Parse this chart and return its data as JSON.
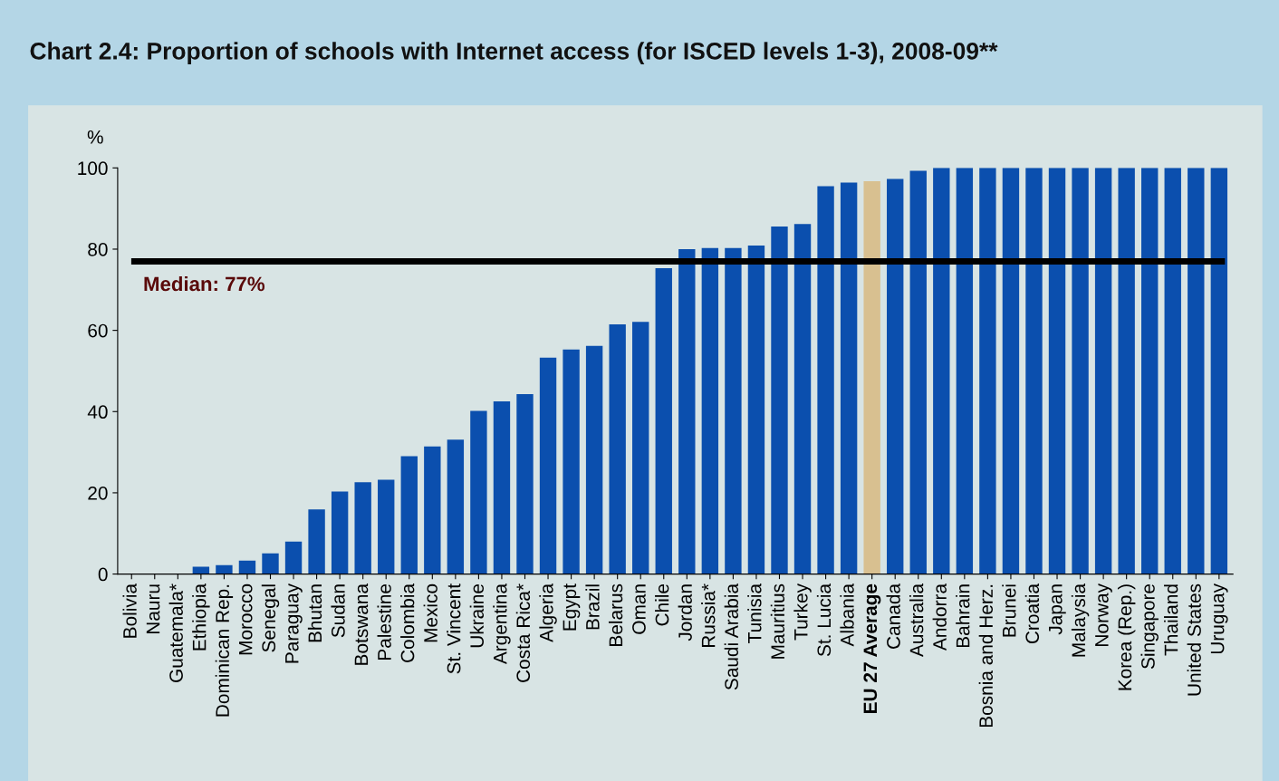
{
  "chart_data": {
    "type": "bar",
    "title": "Chart 2.4: Proportion of schools with Internet access (for ISCED levels 1-3), 2008-09**",
    "ylabel": "%",
    "categories": [
      "Bolivia",
      "Nauru",
      "Guatemala*",
      "Ethiopia",
      "Dominican Rep.",
      "Morocco",
      "Senegal",
      "Paraguay",
      "Bhutan",
      "Sudan",
      "Botswana",
      "Palestine",
      "Colombia",
      "Mexico",
      "St. Vincent",
      "Ukraine",
      "Argentina",
      "Costa Rica*",
      "Algeria",
      "Egypt",
      "Brazil",
      "Belarus",
      "Oman",
      "Chile",
      "Jordan",
      "Russia*",
      "Saudi Arabia",
      "Tunisia",
      "Mauritius",
      "Turkey",
      "St. Lucia",
      "Albania",
      "EU 27 Average",
      "Canada",
      "Australia",
      "Andorra",
      "Bahrain",
      "Bosnia and Herz.",
      "Brunei",
      "Croatia",
      "Japan",
      "Malaysia",
      "Norway",
      "Korea (Rep.)",
      "Singapore",
      "Thailand",
      "United States",
      "Uruguay"
    ],
    "values": [
      0,
      0,
      0,
      1.8,
      2.2,
      3.3,
      5.1,
      8,
      15.9,
      20.3,
      22.6,
      23.2,
      29,
      31.4,
      33.1,
      40.2,
      42.5,
      44.3,
      53.3,
      55.3,
      56.2,
      61.5,
      62.1,
      75.3,
      80,
      80.3,
      80.3,
      80.9,
      85.6,
      86.2,
      95.5,
      96.4,
      96.7,
      97.3,
      99.3,
      100,
      100,
      100,
      100,
      100,
      100,
      100,
      100,
      100,
      100,
      100,
      100,
      100
    ],
    "colors": [
      "#0b4fae",
      "#0b4fae",
      "#0b4fae",
      "#0b4fae",
      "#0b4fae",
      "#0b4fae",
      "#0b4fae",
      "#0b4fae",
      "#0b4fae",
      "#0b4fae",
      "#0b4fae",
      "#0b4fae",
      "#0b4fae",
      "#0b4fae",
      "#0b4fae",
      "#0b4fae",
      "#0b4fae",
      "#0b4fae",
      "#0b4fae",
      "#0b4fae",
      "#0b4fae",
      "#0b4fae",
      "#0b4fae",
      "#0b4fae",
      "#0b4fae",
      "#0b4fae",
      "#0b4fae",
      "#0b4fae",
      "#0b4fae",
      "#0b4fae",
      "#0b4fae",
      "#0b4fae",
      "#d8c090",
      "#0b4fae",
      "#0b4fae",
      "#0b4fae",
      "#0b4fae",
      "#0b4fae",
      "#0b4fae",
      "#0b4fae",
      "#0b4fae",
      "#0b4fae",
      "#0b4fae",
      "#0b4fae",
      "#0b4fae",
      "#0b4fae",
      "#0b4fae",
      "#0b4fae"
    ],
    "ylim": [
      0,
      100
    ],
    "yticks": [
      0,
      20,
      40,
      60,
      80,
      100
    ],
    "grid": false,
    "ref_lines": [
      {
        "axis": "y",
        "value": 77,
        "label": "Median: 77%",
        "color": "#000000"
      }
    ]
  }
}
